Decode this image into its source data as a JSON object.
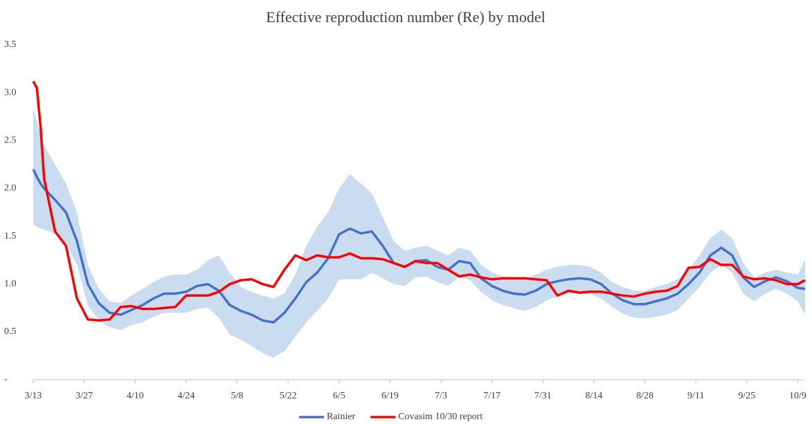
{
  "chart_data": {
    "type": "line",
    "title": "Effective reproduction number (Re) by model",
    "x": [
      0,
      1,
      2,
      3,
      6,
      9,
      12,
      15,
      18,
      21,
      24,
      27,
      30,
      33,
      36,
      39,
      42,
      45,
      48,
      51,
      54,
      57,
      60,
      63,
      66,
      69,
      72,
      75,
      78,
      81,
      84,
      87,
      90,
      93,
      96,
      99,
      102,
      105,
      108,
      111,
      114,
      117,
      120,
      123,
      126,
      129,
      132,
      135,
      138,
      141,
      144,
      147,
      150,
      153,
      156,
      159,
      162,
      165,
      168,
      171,
      174,
      177,
      180,
      183,
      186,
      189,
      192,
      195,
      198,
      201,
      204,
      207,
      210,
      212
    ],
    "xlim": [
      0,
      212
    ],
    "xticks": [
      {
        "value": 0,
        "label": "3/13"
      },
      {
        "value": 14,
        "label": "3/27"
      },
      {
        "value": 28,
        "label": "4/10"
      },
      {
        "value": 42,
        "label": "4/24"
      },
      {
        "value": 56,
        "label": "5/8"
      },
      {
        "value": 70,
        "label": "5/22"
      },
      {
        "value": 84,
        "label": "6/5"
      },
      {
        "value": 98,
        "label": "6/19"
      },
      {
        "value": 112,
        "label": "7/3"
      },
      {
        "value": 126,
        "label": "7/17"
      },
      {
        "value": 140,
        "label": "7/31"
      },
      {
        "value": 154,
        "label": "8/14"
      },
      {
        "value": 168,
        "label": "8/28"
      },
      {
        "value": 182,
        "label": "9/11"
      },
      {
        "value": 196,
        "label": "9/25"
      },
      {
        "value": 210,
        "label": "10/9"
      }
    ],
    "ylim": [
      0,
      3.5
    ],
    "yticks": [
      {
        "value": 0,
        "label": "-"
      },
      0.5,
      {
        "value": 1,
        "label": "1.0"
      },
      1.5,
      {
        "value": 2,
        "label": "2.0"
      },
      2.5,
      {
        "value": 3,
        "label": "3.0"
      },
      3.5
    ],
    "series": [
      {
        "name": "Rainier",
        "color": "#4472c4",
        "values": [
          2.2,
          2.12,
          2.05,
          2.0,
          1.88,
          1.75,
          1.45,
          1.0,
          0.8,
          0.7,
          0.68,
          0.73,
          0.78,
          0.85,
          0.9,
          0.9,
          0.92,
          0.98,
          1.0,
          0.93,
          0.78,
          0.72,
          0.68,
          0.62,
          0.6,
          0.7,
          0.85,
          1.02,
          1.12,
          1.27,
          1.52,
          1.58,
          1.53,
          1.55,
          1.4,
          1.22,
          1.18,
          1.24,
          1.25,
          1.18,
          1.15,
          1.24,
          1.22,
          1.06,
          0.98,
          0.93,
          0.9,
          0.89,
          0.93,
          1.0,
          1.03,
          1.05,
          1.06,
          1.05,
          1.0,
          0.9,
          0.83,
          0.79,
          0.79,
          0.82,
          0.85,
          0.9,
          1.0,
          1.12,
          1.3,
          1.38,
          1.3,
          1.07,
          0.97,
          1.03,
          1.07,
          1.03,
          0.96,
          0.95
        ],
        "band": {
          "color": "#c9dcf0",
          "upper": [
            2.85,
            2.7,
            2.55,
            2.45,
            2.25,
            2.05,
            1.75,
            1.2,
            0.95,
            0.82,
            0.8,
            0.88,
            0.95,
            1.02,
            1.08,
            1.1,
            1.1,
            1.15,
            1.25,
            1.3,
            1.12,
            0.97,
            0.92,
            0.88,
            0.85,
            0.9,
            1.1,
            1.4,
            1.6,
            1.75,
            2.0,
            2.15,
            2.05,
            1.95,
            1.7,
            1.45,
            1.35,
            1.38,
            1.4,
            1.35,
            1.3,
            1.38,
            1.35,
            1.2,
            1.12,
            1.08,
            1.05,
            1.05,
            1.1,
            1.15,
            1.18,
            1.2,
            1.2,
            1.18,
            1.12,
            1.02,
            0.97,
            0.93,
            0.93,
            0.97,
            1.0,
            1.05,
            1.15,
            1.3,
            1.48,
            1.57,
            1.48,
            1.22,
            1.07,
            1.12,
            1.15,
            1.12,
            1.1,
            1.25
          ],
          "lower": [
            1.62,
            1.6,
            1.58,
            1.57,
            1.53,
            1.43,
            1.2,
            0.78,
            0.62,
            0.55,
            0.52,
            0.57,
            0.6,
            0.66,
            0.7,
            0.7,
            0.7,
            0.74,
            0.75,
            0.65,
            0.47,
            0.42,
            0.35,
            0.28,
            0.23,
            0.3,
            0.45,
            0.6,
            0.72,
            0.85,
            1.05,
            1.05,
            1.05,
            1.12,
            1.06,
            1.0,
            0.98,
            1.07,
            1.08,
            1.02,
            0.98,
            1.08,
            1.04,
            0.92,
            0.83,
            0.78,
            0.75,
            0.72,
            0.76,
            0.83,
            0.87,
            0.9,
            0.9,
            0.9,
            0.85,
            0.76,
            0.69,
            0.65,
            0.64,
            0.66,
            0.68,
            0.73,
            0.85,
            0.97,
            1.12,
            1.2,
            1.12,
            0.9,
            0.82,
            0.9,
            0.95,
            0.9,
            0.82,
            0.68
          ]
        }
      },
      {
        "name": "Covasim 10/30 report",
        "color": "#ff0000",
        "values": [
          3.12,
          3.05,
          2.65,
          2.1,
          1.55,
          1.4,
          0.85,
          0.63,
          0.62,
          0.63,
          0.76,
          0.77,
          0.74,
          0.74,
          0.75,
          0.76,
          0.88,
          0.88,
          0.88,
          0.92,
          1.0,
          1.04,
          1.05,
          1.0,
          0.97,
          1.15,
          1.3,
          1.25,
          1.3,
          1.28,
          1.28,
          1.32,
          1.27,
          1.27,
          1.26,
          1.22,
          1.18,
          1.24,
          1.22,
          1.22,
          1.15,
          1.08,
          1.1,
          1.07,
          1.05,
          1.06,
          1.06,
          1.06,
          1.05,
          1.04,
          0.88,
          0.93,
          0.91,
          0.92,
          0.92,
          0.9,
          0.88,
          0.87,
          0.9,
          0.92,
          0.93,
          0.98,
          1.17,
          1.18,
          1.26,
          1.2,
          1.2,
          1.08,
          1.05,
          1.06,
          1.04,
          1.0,
          1.0,
          1.04
        ]
      }
    ]
  }
}
